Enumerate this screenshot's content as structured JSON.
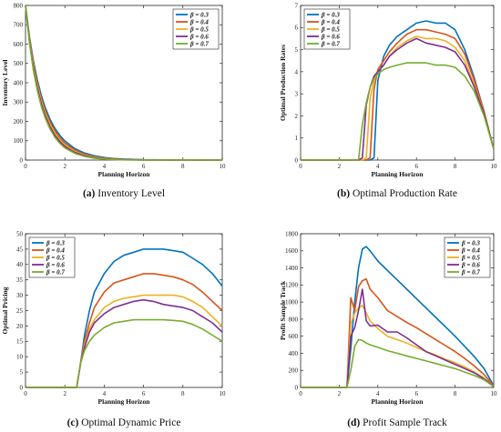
{
  "figure": {
    "captions": [
      {
        "letter": "(a)",
        "text": " Inventory Level"
      },
      {
        "letter": "(b)",
        "text": " Optimal Production Rate"
      },
      {
        "letter": "(c)",
        "text": " Optimal Dynamic Price"
      },
      {
        "letter": "(d)",
        "text": " Profit Sample Track"
      }
    ]
  },
  "colors": {
    "beta_0_3": "#0072BD",
    "beta_0_4": "#D95319",
    "beta_0_5": "#EDB120",
    "beta_0_6": "#7E2F8E",
    "beta_0_7": "#77AC30"
  },
  "chart_data": [
    {
      "type": "line",
      "title": "",
      "xlabel": "Planning Horizon",
      "ylabel": "Inventory Level",
      "xlim": [
        0,
        10
      ],
      "ylim": [
        0,
        800
      ],
      "xticks": [
        0,
        2,
        4,
        6,
        8,
        10
      ],
      "yticks": [
        0,
        100,
        200,
        300,
        400,
        500,
        600,
        700,
        800
      ],
      "legend_position": "top-right",
      "x": [
        0,
        0.2,
        0.4,
        0.6,
        0.8,
        1.0,
        1.25,
        1.5,
        1.75,
        2.0,
        2.5,
        3.0,
        3.5,
        4.0,
        4.5,
        5.0,
        6.0,
        7.0,
        8.0,
        9.0,
        10.0
      ],
      "series": [
        {
          "name": "β = 0.3",
          "values": [
            800,
            640,
            515,
            415,
            335,
            272,
            210,
            163,
            127,
            99,
            60,
            36,
            22,
            13,
            8,
            5,
            2,
            1,
            0,
            0,
            0
          ]
        },
        {
          "name": "β = 0.4",
          "values": [
            800,
            632,
            502,
            400,
            320,
            257,
            196,
            150,
            115,
            88,
            52,
            30,
            18,
            10,
            6,
            3,
            1,
            0,
            0,
            0,
            0
          ]
        },
        {
          "name": "β = 0.5",
          "values": [
            800,
            624,
            490,
            386,
            306,
            243,
            183,
            138,
            104,
            79,
            45,
            26,
            15,
            8,
            4,
            2,
            1,
            0,
            0,
            0,
            0
          ]
        },
        {
          "name": "β = 0.6",
          "values": [
            800,
            617,
            478,
            373,
            292,
            230,
            171,
            127,
            95,
            71,
            40,
            22,
            12,
            6,
            3,
            2,
            0,
            0,
            0,
            0,
            0
          ]
        },
        {
          "name": "β = 0.7",
          "values": [
            800,
            609,
            466,
            360,
            279,
            218,
            160,
            117,
            86,
            63,
            35,
            19,
            10,
            5,
            3,
            1,
            0,
            0,
            0,
            0,
            0
          ]
        }
      ]
    },
    {
      "type": "line",
      "title": "",
      "xlabel": "Planning Horizon",
      "ylabel": "Optimal Production Rates",
      "xlim": [
        0,
        10
      ],
      "ylim": [
        0,
        7
      ],
      "xticks": [
        0,
        2,
        4,
        6,
        8,
        10
      ],
      "yticks": [
        0,
        1,
        2,
        3,
        4,
        5,
        6,
        7
      ],
      "legend_position": "top-left",
      "x": [
        0,
        3.0,
        3.2,
        3.4,
        3.6,
        3.8,
        4.0,
        4.3,
        4.6,
        5.0,
        5.5,
        6.0,
        6.5,
        7.0,
        7.5,
        8.0,
        8.5,
        9.0,
        9.5,
        10.0
      ],
      "series": [
        {
          "name": "β = 0.3",
          "values": [
            0,
            0,
            0,
            0,
            0,
            0.1,
            3.6,
            4.7,
            5.2,
            5.6,
            5.9,
            6.2,
            6.3,
            6.2,
            6.2,
            5.9,
            5.0,
            3.7,
            2.2,
            0.5
          ]
        },
        {
          "name": "β = 0.4",
          "values": [
            0,
            0,
            0,
            0,
            0.1,
            3.2,
            4.1,
            4.5,
            4.9,
            5.3,
            5.7,
            5.9,
            5.9,
            5.8,
            5.7,
            5.5,
            4.8,
            3.6,
            2.2,
            0.5
          ]
        },
        {
          "name": "β = 0.5",
          "values": [
            0,
            0,
            0,
            0.1,
            2.8,
            3.6,
            4.0,
            4.3,
            4.7,
            5.1,
            5.4,
            5.6,
            5.5,
            5.5,
            5.4,
            5.1,
            4.5,
            3.4,
            2.1,
            0.5
          ]
        },
        {
          "name": "β = 0.6",
          "values": [
            0,
            0,
            0.1,
            2.5,
            3.3,
            3.8,
            4.0,
            4.3,
            4.7,
            5.0,
            5.3,
            5.5,
            5.3,
            5.2,
            5.1,
            4.9,
            4.3,
            3.3,
            2.1,
            0.5
          ]
        },
        {
          "name": "β = 0.7",
          "values": [
            0,
            0,
            1.6,
            2.6,
            3.3,
            3.7,
            3.9,
            4.1,
            4.2,
            4.3,
            4.4,
            4.4,
            4.4,
            4.3,
            4.3,
            4.2,
            3.8,
            3.1,
            2.0,
            0.5
          ]
        }
      ]
    },
    {
      "type": "line",
      "title": "",
      "xlabel": "Planning Horizon",
      "ylabel": "Optimal Pricing",
      "xlim": [
        0,
        10
      ],
      "ylim": [
        0,
        50
      ],
      "xticks": [
        0,
        2,
        4,
        6,
        8,
        10
      ],
      "yticks": [
        0,
        5,
        10,
        15,
        20,
        25,
        30,
        35,
        40,
        45,
        50
      ],
      "legend_position": "top-left",
      "x": [
        0,
        2.5,
        2.6,
        2.8,
        3.0,
        3.25,
        3.5,
        4.0,
        4.5,
        5.0,
        5.5,
        6.0,
        6.5,
        7.0,
        7.5,
        8.0,
        8.5,
        9.0,
        9.5,
        10.0
      ],
      "series": [
        {
          "name": "β = 0.3",
          "values": [
            0,
            0,
            0,
            8,
            17,
            25,
            31,
            37,
            41,
            43,
            44,
            45,
            45,
            45,
            44.5,
            44,
            42,
            40,
            37,
            33
          ]
        },
        {
          "name": "β = 0.4",
          "values": [
            0,
            0,
            0,
            8,
            15,
            21,
            26,
            31,
            34,
            35,
            36,
            37,
            37,
            36.5,
            36,
            35,
            33.5,
            31,
            28,
            25
          ]
        },
        {
          "name": "β = 0.5",
          "values": [
            0,
            0,
            0,
            8,
            14,
            19,
            22,
            26,
            28,
            29,
            29.5,
            30,
            30,
            30,
            30,
            29.5,
            28,
            26,
            23,
            20
          ]
        },
        {
          "name": "β = 0.6",
          "values": [
            0,
            0,
            0,
            8,
            13,
            18,
            21,
            24,
            26,
            27,
            28,
            28.5,
            28,
            27,
            26.5,
            26,
            25,
            23,
            21,
            18
          ]
        },
        {
          "name": "β = 0.7",
          "values": [
            0,
            0,
            0,
            8,
            12,
            15,
            17,
            19.5,
            21,
            21.5,
            22,
            22,
            22,
            22,
            21.8,
            21.5,
            20.5,
            19,
            17,
            15
          ]
        }
      ]
    },
    {
      "type": "line",
      "title": "",
      "xlabel": "Planning Horizon",
      "ylabel": "Profit Sample Track",
      "xlim": [
        0,
        10
      ],
      "ylim": [
        0,
        1800
      ],
      "xticks": [
        0,
        2,
        4,
        6,
        8,
        10
      ],
      "yticks": [
        0,
        200,
        400,
        600,
        800,
        1000,
        1200,
        1400,
        1600,
        1800
      ],
      "legend_position": "top-right",
      "x": [
        0,
        2.2,
        2.4,
        2.6,
        2.8,
        3.0,
        3.2,
        3.4,
        3.6,
        4.0,
        4.5,
        5.0,
        5.5,
        6.0,
        6.5,
        7.0,
        7.5,
        8.0,
        8.5,
        9.0,
        9.5,
        10.0
      ],
      "series": [
        {
          "name": "β = 0.3",
          "values": [
            0,
            0,
            0,
            450,
            1000,
            1400,
            1620,
            1650,
            1600,
            1480,
            1370,
            1260,
            1150,
            1040,
            930,
            820,
            710,
            600,
            480,
            360,
            220,
            20
          ]
        },
        {
          "name": "β = 0.4",
          "values": [
            0,
            0,
            0,
            1050,
            900,
            1180,
            1250,
            1270,
            1150,
            1050,
            900,
            830,
            760,
            700,
            630,
            560,
            490,
            420,
            340,
            250,
            150,
            20
          ]
        },
        {
          "name": "β = 0.5",
          "values": [
            0,
            0,
            0,
            750,
            870,
            930,
            960,
            870,
            780,
            690,
            600,
            560,
            520,
            470,
            420,
            380,
            330,
            290,
            240,
            180,
            110,
            15
          ]
        },
        {
          "name": "β = 0.6",
          "values": [
            0,
            0,
            0,
            600,
            700,
            900,
            1150,
            780,
            720,
            730,
            650,
            650,
            580,
            500,
            420,
            370,
            320,
            270,
            220,
            170,
            100,
            15
          ]
        },
        {
          "name": "β = 0.7",
          "values": [
            0,
            0,
            0,
            200,
            480,
            560,
            550,
            520,
            500,
            470,
            430,
            400,
            370,
            340,
            310,
            280,
            250,
            220,
            180,
            140,
            90,
            10
          ]
        }
      ]
    }
  ]
}
